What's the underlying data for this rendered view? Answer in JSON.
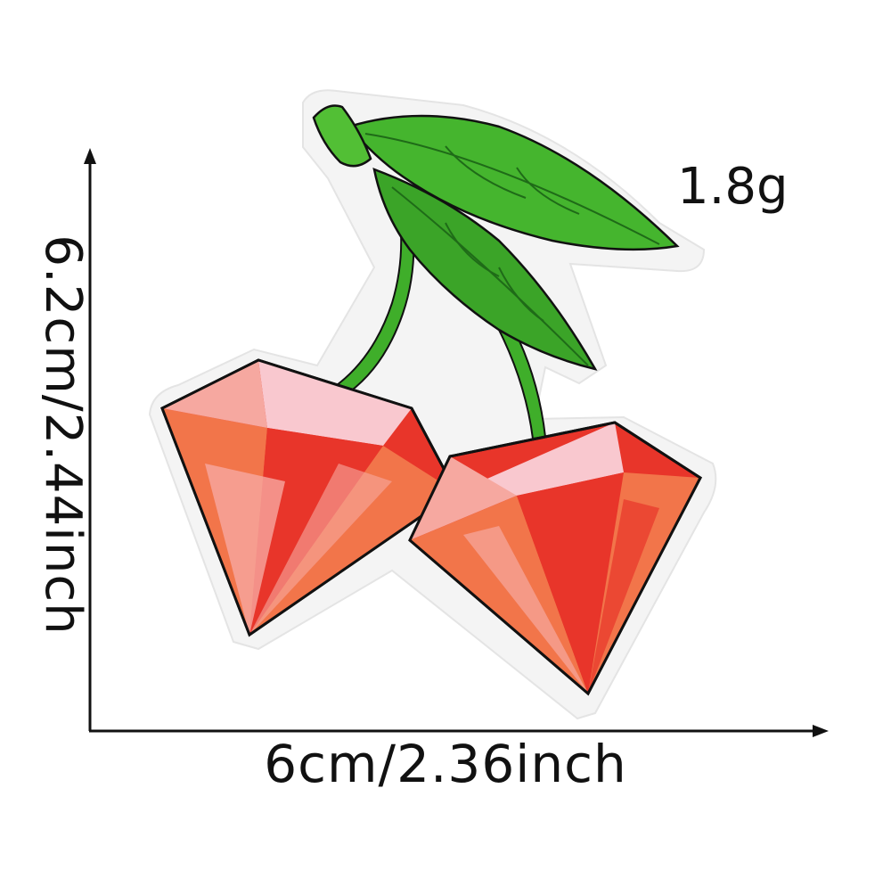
{
  "width_label": "6cm/2.36inch",
  "height_label": "6.2cm/2.44inch",
  "weight_label": "1.8g",
  "product": {
    "subject": "embroidered-cherry-diamond-patch",
    "colors": {
      "leaf": "#3fae2a",
      "leaf_dark": "#2a7d1c",
      "gem_red": "#e8352a",
      "gem_orange": "#f2754a",
      "gem_pink": "#f6a8a0",
      "gem_light_pink": "#f9c8cf",
      "outline": "#111111",
      "felt_border": "#f3f3f3"
    }
  }
}
